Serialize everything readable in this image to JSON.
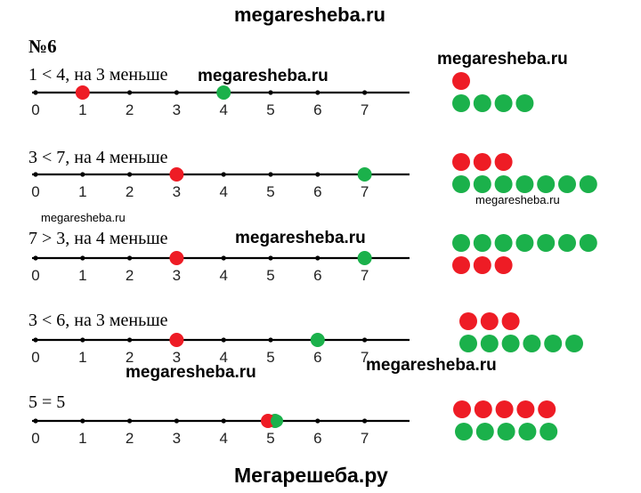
{
  "header_watermark": "megaresheba.ru",
  "task_number": "№6",
  "number_line_ticks": [
    "0",
    "1",
    "2",
    "3",
    "4",
    "5",
    "6",
    "7"
  ],
  "colors": {
    "red": "#ee1c25",
    "green": "#1bb14b",
    "line": "#000000"
  },
  "rows": [
    {
      "statement": "1 < 4, на 3 меньше",
      "red_value": 1,
      "green_value": 4,
      "red_count": 1,
      "green_count": 4
    },
    {
      "statement": "3 < 7, на 4 меньше",
      "red_value": 3,
      "green_value": 7,
      "red_count": 3,
      "green_count": 7
    },
    {
      "statement": "7 > 3, на 4 меньше",
      "red_value": 3,
      "green_value": 7,
      "red_count": 3,
      "green_count": 7
    },
    {
      "statement": "3 < 6, на 3 меньше",
      "red_value": 3,
      "green_value": 6,
      "red_count": 3,
      "green_count": 6
    },
    {
      "statement": "5 = 5",
      "red_value": 5,
      "green_value": 5,
      "red_count": 5,
      "green_count": 5
    }
  ],
  "watermarks": {
    "w1": "megaresheba.ru",
    "w2": "megaresheba.ru",
    "w3": "megaresheba.ru",
    "w4": "megaresheba.ru",
    "w5": "megaresheba.ru",
    "w6": "megaresheba.ru",
    "w7": "megaresheba.ru",
    "w8": "megaresheba.ru"
  },
  "footer": "Мегарешеба.ру"
}
